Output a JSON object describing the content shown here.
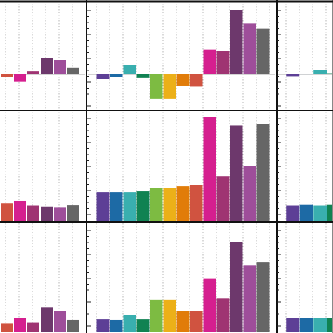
{
  "palette": {
    "purple": "#5d3f96",
    "blue": "#1d6aa5",
    "teal": "#39afaf",
    "green": "#108252",
    "lime": "#7dbb42",
    "gold": "#ecb018",
    "orange": "#e17c09",
    "red": "#d05340",
    "magenta": "#d51f8f",
    "crimson": "#9f3472",
    "plum": "#6d386c",
    "violet": "#9e4e9a",
    "gray": "#666666"
  },
  "chart_data": [
    {
      "type": "bar",
      "panel": "top-left",
      "values": [
        -0.08,
        -0.22,
        0.1,
        0.48,
        0.42,
        0.19
      ],
      "colors": [
        "red",
        "magenta",
        "crimson",
        "plum",
        "violet",
        "gray"
      ],
      "grid": true,
      "ylim": [
        -0.9,
        1.8
      ]
    },
    {
      "type": "bar",
      "panel": "top-middle",
      "values": [
        -0.14,
        -0.07,
        0.28,
        -0.1,
        -0.72,
        -0.72,
        -0.33,
        -0.36,
        0.73,
        0.7,
        1.9,
        1.5,
        1.35
      ],
      "colors": [
        "purple",
        "blue",
        "teal",
        "green",
        "lime",
        "gold",
        "orange",
        "red",
        "magenta",
        "crimson",
        "plum",
        "violet",
        "gray"
      ],
      "grid": true,
      "ylim": [
        -0.9,
        2.15
      ]
    },
    {
      "type": "bar",
      "panel": "top-right",
      "values": [
        -0.05,
        0.02,
        0.14,
        0.03
      ],
      "colors": [
        "purple",
        "blue",
        "teal",
        "green"
      ],
      "grid": true,
      "ylim": [
        -0.9,
        1.8
      ]
    },
    {
      "type": "bar",
      "panel": "middle-left",
      "values": [
        0.63,
        0.71,
        0.55,
        0.52,
        0.48,
        0.56
      ],
      "colors": [
        "red",
        "magenta",
        "crimson",
        "plum",
        "violet",
        "gray"
      ],
      "grid": true,
      "ylim": [
        0,
        3.8
      ]
    },
    {
      "type": "bar",
      "panel": "middle-center",
      "values": [
        1.0,
        1.0,
        1.0,
        1.05,
        1.15,
        1.15,
        1.22,
        1.25,
        3.62,
        1.56,
        3.34,
        1.93,
        3.38
      ],
      "colors": [
        "purple",
        "blue",
        "teal",
        "green",
        "lime",
        "gold",
        "orange",
        "red",
        "magenta",
        "crimson",
        "plum",
        "violet",
        "gray"
      ],
      "grid": true,
      "ylim": [
        0,
        3.8
      ]
    },
    {
      "type": "bar",
      "panel": "middle-right",
      "values": [
        0.55,
        0.57,
        0.55,
        0.57
      ],
      "colors": [
        "purple",
        "blue",
        "teal",
        "green"
      ],
      "grid": true,
      "ylim": [
        0,
        3.8
      ]
    },
    {
      "type": "bar",
      "panel": "bottom-left",
      "values": [
        0.3,
        0.5,
        0.32,
        0.85,
        0.73,
        0.43
      ],
      "colors": [
        "red",
        "magenta",
        "crimson",
        "plum",
        "violet",
        "gray"
      ],
      "grid": true,
      "ylim": [
        0,
        3.8
      ]
    },
    {
      "type": "bar",
      "panel": "bottom-center",
      "values": [
        0.45,
        0.43,
        0.58,
        0.45,
        1.1,
        1.1,
        0.72,
        0.72,
        1.82,
        1.16,
        3.05,
        2.28,
        2.38
      ],
      "colors": [
        "purple",
        "blue",
        "teal",
        "green",
        "lime",
        "gold",
        "orange",
        "red",
        "magenta",
        "crimson",
        "plum",
        "violet",
        "gray"
      ],
      "grid": true,
      "ylim": [
        0,
        3.8
      ]
    },
    {
      "type": "bar",
      "panel": "bottom-right",
      "values": [
        0.5,
        0.5,
        0.5,
        0.5
      ],
      "colors": [
        "purple",
        "blue",
        "teal",
        "green"
      ],
      "grid": true,
      "ylim": [
        0,
        3.8
      ]
    }
  ]
}
